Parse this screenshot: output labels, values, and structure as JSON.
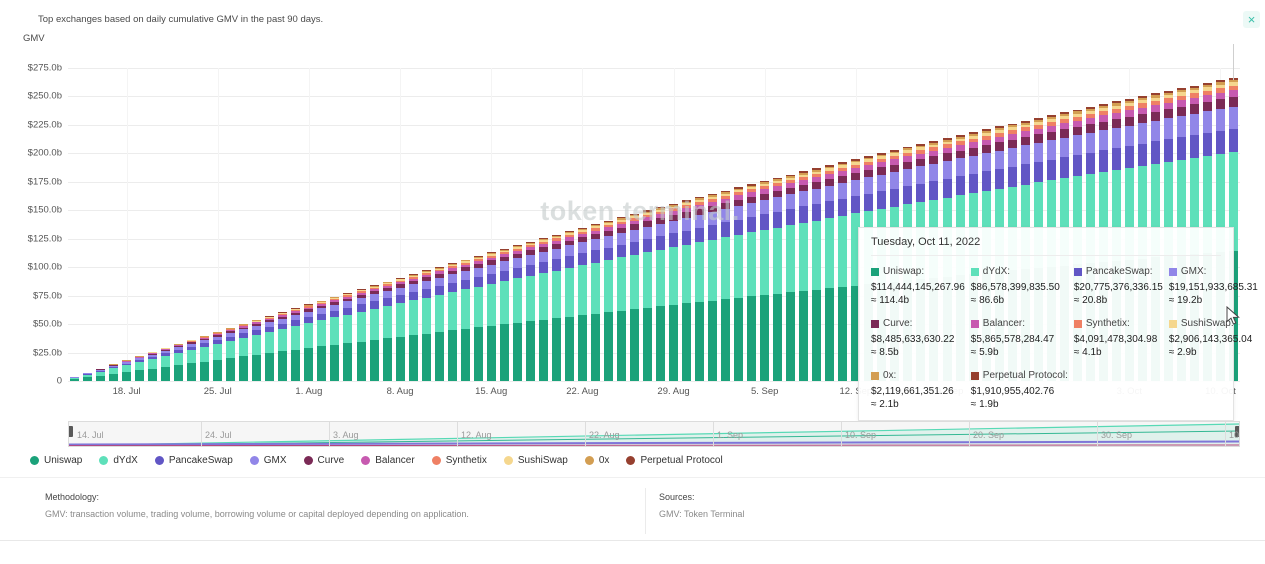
{
  "header": {
    "title": "Top exchanges based on daily cumulative GMV in the past 90 days.",
    "axis_label": "GMV"
  },
  "icons": {
    "close": "×"
  },
  "watermark": "token terminal.",
  "chart_data": {
    "type": "bar",
    "subtype": "stacked-cumulative-daily",
    "title": "Top exchanges based on daily cumulative GMV in the past 90 days.",
    "xlabel": "",
    "ylabel": "GMV",
    "ylim": [
      0,
      275
    ],
    "y_ticks": [
      "$275.0b",
      "$250.0b",
      "$225.0b",
      "$200.0b",
      "$175.0b",
      "$150.0b",
      "$125.0b",
      "$100.0b",
      "$75.0b",
      "$50.0b",
      "$25.0b",
      "0"
    ],
    "x_ticks": [
      {
        "label": "18. Jul",
        "day": 4
      },
      {
        "label": "25. Jul",
        "day": 11
      },
      {
        "label": "1. Aug",
        "day": 18
      },
      {
        "label": "8. Aug",
        "day": 25
      },
      {
        "label": "15. Aug",
        "day": 32
      },
      {
        "label": "22. Aug",
        "day": 39
      },
      {
        "label": "29. Aug",
        "day": 46
      },
      {
        "label": "5. Sep",
        "day": 53
      },
      {
        "label": "12. Sep",
        "day": 60
      },
      {
        "label": "19. Sep",
        "day": 67
      },
      {
        "label": "26. Sep",
        "day": 74
      },
      {
        "label": "3. Oct",
        "day": 81
      },
      {
        "label": "10. Oct",
        "day": 88
      }
    ],
    "n_bars": 90,
    "hovered_bar_index": 89,
    "grid": true,
    "legend_position": "bottom",
    "series": [
      {
        "name": "Uniswap",
        "color": "#1ba27a",
        "final_cumulative_b": 114.4
      },
      {
        "name": "dYdX",
        "color": "#5ee0ba",
        "final_cumulative_b": 86.6
      },
      {
        "name": "PancakeSwap",
        "color": "#6156c5",
        "final_cumulative_b": 20.8
      },
      {
        "name": "GMX",
        "color": "#9186e8",
        "final_cumulative_b": 19.2
      },
      {
        "name": "Curve",
        "color": "#7b2a56",
        "final_cumulative_b": 8.5
      },
      {
        "name": "Balancer",
        "color": "#c75ab0",
        "final_cumulative_b": 5.9
      },
      {
        "name": "Synthetix",
        "color": "#ef8064",
        "final_cumulative_b": 4.1
      },
      {
        "name": "SushiSwap",
        "color": "#f5d78e",
        "final_cumulative_b": 2.9
      },
      {
        "name": "0x",
        "color": "#d39e52",
        "final_cumulative_b": 2.1
      },
      {
        "name": "Perpetual Protocol",
        "color": "#96402f",
        "final_cumulative_b": 1.9
      }
    ],
    "daily_totals_b": [
      3.7,
      7.4,
      11.0,
      14.7,
      18.3,
      21.9,
      25.5,
      29.1,
      32.6,
      36.2,
      39.7,
      43.2,
      46.7,
      50.2,
      53.7,
      57.1,
      60.5,
      63.9,
      67.3,
      70.7,
      74.1,
      77.4,
      80.8,
      84.1,
      87.4,
      90.6,
      93.9,
      97.2,
      100.4,
      103.6,
      106.8,
      110.0,
      113.1,
      116.3,
      119.4,
      122.5,
      125.6,
      128.7,
      131.8,
      134.8,
      137.9,
      140.9,
      143.9,
      146.9,
      149.9,
      152.8,
      155.7,
      158.7,
      161.6,
      164.4,
      167.3,
      170.2,
      173.0,
      175.8,
      178.6,
      181.4,
      184.2,
      186.9,
      189.7,
      192.4,
      195.1,
      197.8,
      200.5,
      203.1,
      205.8,
      208.4,
      211.0,
      213.6,
      216.2,
      218.7,
      221.3,
      223.8,
      226.3,
      228.8,
      231.3,
      233.7,
      236.2,
      238.6,
      241.0,
      243.4,
      245.8,
      248.1,
      250.5,
      252.8,
      255.1,
      257.4,
      259.7,
      261.9,
      264.2,
      266.4
    ]
  },
  "tooltip": {
    "date": "Tuesday, Oct 11, 2022",
    "entries": [
      {
        "label": "Uniswap:",
        "value": "$114,444,145,267.96",
        "approx": "≈ 114.4b"
      },
      {
        "label": "dYdX:",
        "value": "$86,578,399,835.50",
        "approx": "≈ 86.6b"
      },
      {
        "label": "PancakeSwap:",
        "value": "$20,775,376,336.15",
        "approx": "≈ 20.8b"
      },
      {
        "label": "GMX:",
        "value": "$19,151,933,685.31",
        "approx": "≈ 19.2b"
      },
      {
        "label": "Curve:",
        "value": "$8,485,633,630.22",
        "approx": "≈ 8.5b"
      },
      {
        "label": "Balancer:",
        "value": "$5,865,578,284.47",
        "approx": "≈ 5.9b"
      },
      {
        "label": "Synthetix:",
        "value": "$4,091,478,304.98",
        "approx": "≈ 4.1b"
      },
      {
        "label": "SushiSwap:",
        "value": "$2,906,143,365.04",
        "approx": "≈ 2.9b"
      },
      {
        "label": "0x:",
        "value": "$2,119,661,351.26",
        "approx": "≈ 2.1b"
      },
      {
        "label": "Perpetual Protocol:",
        "value": "$1,910,955,402.76",
        "approx": "≈ 1.9b"
      }
    ]
  },
  "navigator": {
    "ticks": [
      "14. Jul",
      "24. Jul",
      "3. Aug",
      "12. Aug",
      "22. Aug",
      "1. Sep",
      "10. Sep",
      "20. Sep",
      "30. Sep",
      "10. Oct"
    ]
  },
  "footer": {
    "methodology_label": "Methodology:",
    "methodology_text": "GMV: transaction volume, trading volume, borrowing volume or capital deployed depending on application.",
    "sources_label": "Sources:",
    "sources_text": "GMV: Token Terminal"
  }
}
